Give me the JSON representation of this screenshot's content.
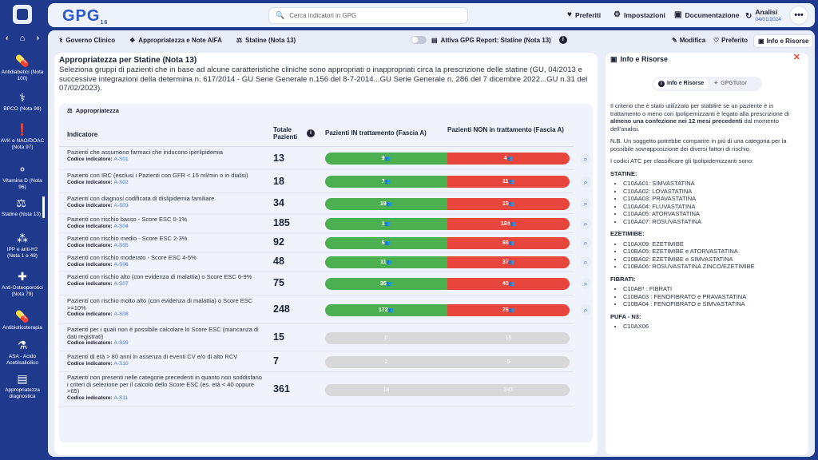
{
  "sidebar": {
    "items": [
      {
        "label": "Antidiabetici (Nota 100)",
        "icon": "pill-icon"
      },
      {
        "label": "BPCO (Nota 99)",
        "icon": "lungs-icon"
      },
      {
        "label": "AVK e NAO/DOAC (Nota 97)",
        "icon": "exclamation-icon"
      },
      {
        "label": "Vitamina D (Nota 96)",
        "icon": "capsules-icon"
      },
      {
        "label": "Statine (Nota 13)",
        "icon": "statine-icon"
      },
      {
        "label": "IPP e anti-H2 (Nota 1 e 48)",
        "icon": "bubbles-icon"
      },
      {
        "label": "Anti-Osteoporotici (Nota 79)",
        "icon": "plus-icon"
      },
      {
        "label": "Antibioticoterapia",
        "icon": "pill-icon"
      },
      {
        "label": "ASA - Acido Acetilsalicilico",
        "icon": "pills-icon"
      },
      {
        "label": "Appropriatezza diagnostica",
        "icon": "report-icon"
      }
    ]
  },
  "header": {
    "brand": "GPG",
    "brand_sub": "16",
    "search_placeholder": "Cerca indicatori in GPG",
    "preferiti": "Preferiti",
    "impostazioni": "Impostazioni",
    "documentazione": "Documentazione",
    "analisi": "Analisi",
    "analisi_date": "04/01/2024"
  },
  "toolbar": {
    "crumb1": "Governo Clinico",
    "crumb2": "Appropriatezza e Note AIFA",
    "crumb3": "Statine (Nota 13)",
    "gpg_report": "Attiva GPG Report: Statine (Nota 13)",
    "modifica": "Modifica",
    "preferito": "Preferito",
    "info": "Info e Risorse"
  },
  "main": {
    "title": "Appropriatezza per Statine (Nota 13)",
    "description": "Seleziona gruppi di pazienti che in base ad alcune caratteristiche cliniche sono appropriati o inappropriati circa la prescrizione delle statine (GU, 04/2013 e successive integrazioni della determina n. 617/2014 - GU Serie Generale n.156 del 8-7-2014...GU Serie Generale n. 286 del 7 dicembre 2022...GU n.31 del 07/02/2023).",
    "card_title": "Appropriatezza",
    "col_indicatore": "Indicatore",
    "col_totale": "Totale Pazienti",
    "col_in": "Pazienti IN trattamento (Fascia A)",
    "col_non": "Pazienti NON in trattamento (Fascia A)",
    "code_label": "Codice indicatore:",
    "rows": [
      {
        "label": "Pazienti che assumono farmaci che inducono iperlipidemia",
        "code": "A-S01",
        "total": "13",
        "in": "9",
        "non": "4",
        "active": true
      },
      {
        "label": "Pazienti con IRC (esclusi i Pazienti con GFR < 15 ml/min o in dialisi)",
        "code": "A-S02",
        "total": "18",
        "in": "7",
        "non": "11",
        "active": true
      },
      {
        "label": "Pazienti con diagnosi codificata di dislipidemia familiare",
        "code": "A-S03",
        "total": "34",
        "in": "19",
        "non": "15",
        "active": true
      },
      {
        "label": "Pazienti con rischio basso - Score ESC 0-1%",
        "code": "A-S04",
        "total": "185",
        "in": "1",
        "non": "184",
        "active": true
      },
      {
        "label": "Pazienti con rischio medio - Score ESC 2-3%",
        "code": "A-S05",
        "total": "92",
        "in": "6",
        "non": "86",
        "active": true
      },
      {
        "label": "Pazienti con rischio moderato - Score ESC 4-5%",
        "code": "A-S06",
        "total": "48",
        "in": "11",
        "non": "37",
        "active": true
      },
      {
        "label": "Pazienti con rischio alto (con evidenza di malattia) o Score ESC 6-9%",
        "code": "A-S07",
        "total": "75",
        "in": "35",
        "non": "40",
        "active": true
      },
      {
        "label": "Pazienti con rischio molto alto (con evidenza di malattia) o Score ESC >=10%",
        "code": "A-S08",
        "total": "248",
        "in": "172",
        "non": "76",
        "active": true
      },
      {
        "label": "Pazienti per i quali non è possibile calcolare lo Score ESC (mancanza di dati registrati)",
        "code": "A-S09",
        "total": "15",
        "in": "0",
        "non": "15",
        "active": false
      },
      {
        "label": "Pazienti di età > 80 anni in assenza di eventi CV e/o di alto RCV",
        "code": "A-S10",
        "total": "7",
        "in": "2",
        "non": "5",
        "active": false
      },
      {
        "label": "Pazienti non presenti nelle categorie precedenti in quanto non soddisfano i criteri di selezione per il calcolo dello Score ESC (es. età < 40 oppure >65)",
        "code": "A-S11",
        "total": "361",
        "in": "18",
        "non": "343",
        "active": false
      }
    ]
  },
  "info_panel": {
    "title": "Info e Risorse",
    "tab1": "Info e Risorse",
    "tab2": "GPGTutor",
    "p1_a": "Il criterio che è stato utilizzato per stabilire se un paziente è in trattamento o meno con Ipolipemizzanti è legato alla prescrizione di ",
    "p1_b": "almeno una confezione nei 12 mesi precedenti",
    "p1_c": " dal momento dell'analisi.",
    "p2": "N.B. Un soggetto potrebbe comparire in più di una categoria per la possibile sovrapposizione dei diversi fattori di rischio.",
    "p3": "I codici ATC per classificare gli Ipolipidemizzanti sono:",
    "sections": [
      {
        "title": "STATINE:",
        "items": [
          "C10AA01: SIMVASTATINA",
          "C10AA02: LOVASTATINA",
          "C10AA03: PRAVASTATINA",
          "C10AA04: FLUVASTATINA",
          "C10AA05: ATORVASTATINA",
          "C10AA07: ROSUVASTATINA"
        ]
      },
      {
        "title": "EZETIMIBE:",
        "items": [
          "C10AX09: EZETIMIBE",
          "C10BA05: EZETIMIBE e ATORVASTATINA",
          "C10BA02: EZETIMIBE e SIMVASTATINA",
          "C10BA06: ROSUVASTATINA ZINCO/EZETIMIBE"
        ]
      },
      {
        "title": "FIBRATI:",
        "items": [
          "C10AB* : FIBRATI",
          "C10BA03 : FENOFIBRATO e PRAVASTATINA",
          "C10BA04 : FENOFIBRATO e SIMVASTATINA"
        ]
      },
      {
        "title": "PUFA - N3:",
        "items": [
          "C10AX06"
        ]
      }
    ]
  },
  "colors": {
    "green": "#4caf50",
    "red": "#e8453c",
    "grey": "#d8d8d8",
    "accent": "#1f3a8c"
  }
}
